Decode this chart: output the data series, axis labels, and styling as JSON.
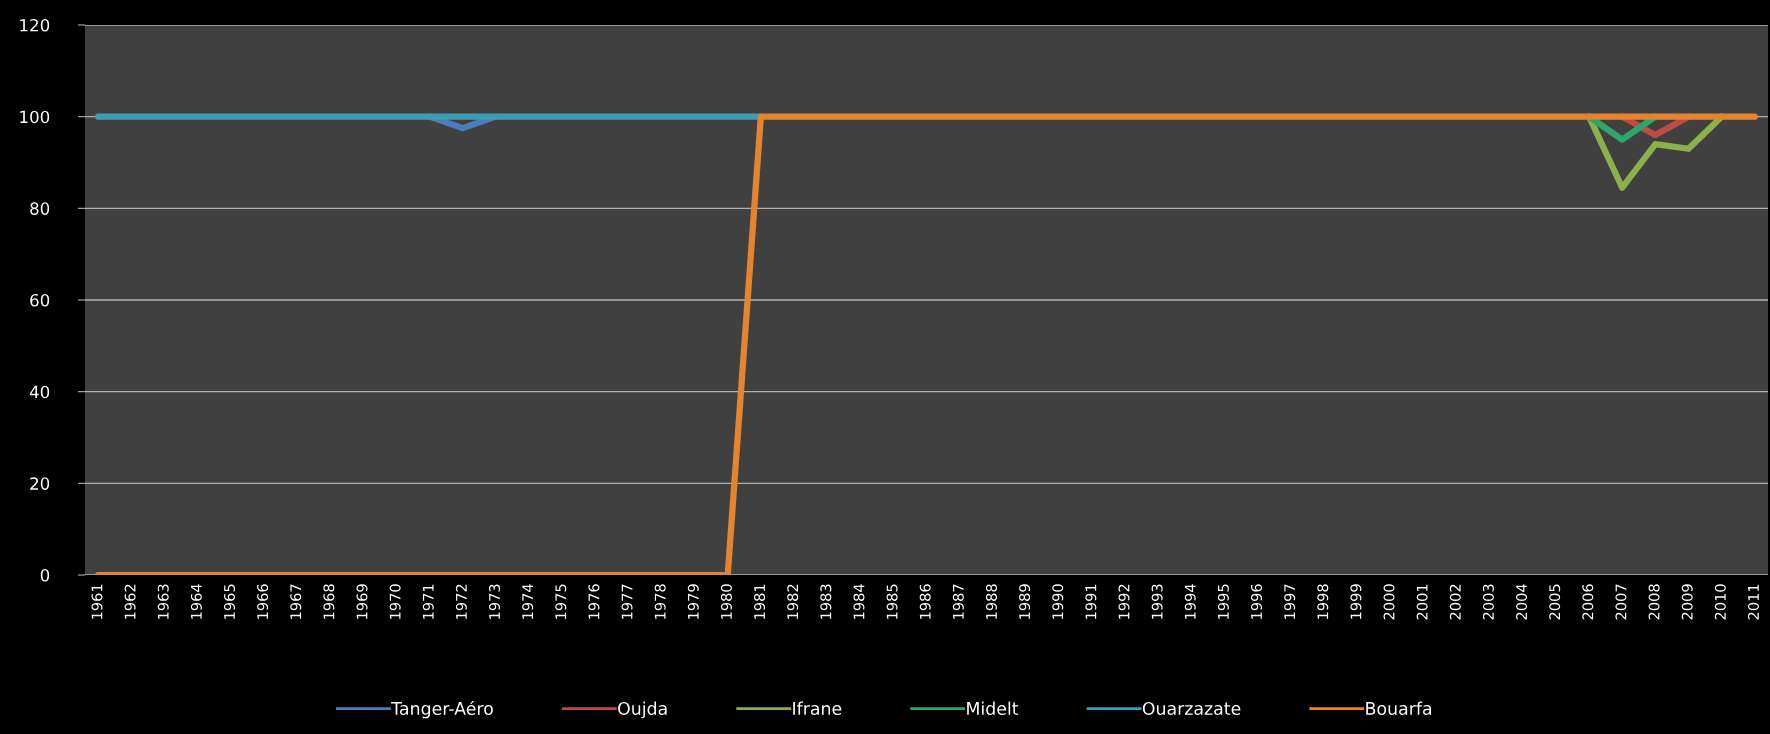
{
  "chart_data": {
    "type": "line",
    "categories": [
      "1961",
      "1962",
      "1963",
      "1964",
      "1965",
      "1966",
      "1967",
      "1968",
      "1969",
      "1970",
      "1971",
      "1972",
      "1973",
      "1974",
      "1975",
      "1976",
      "1977",
      "1978",
      "1979",
      "1980",
      "1981",
      "1982",
      "1983",
      "1984",
      "1985",
      "1986",
      "1987",
      "1988",
      "1989",
      "1990",
      "1991",
      "1992",
      "1993",
      "1994",
      "1995",
      "1996",
      "1997",
      "1998",
      "1999",
      "2000",
      "2001",
      "2002",
      "2003",
      "2004",
      "2005",
      "2006",
      "2007",
      "2008",
      "2009",
      "2010",
      "2011"
    ],
    "series": [
      {
        "name": "Tanger-Aéro",
        "color": "#4a7ebb",
        "values": [
          null,
          null,
          null,
          null,
          null,
          null,
          null,
          null,
          null,
          null,
          100,
          97.5,
          100,
          null,
          null,
          null,
          null,
          null,
          null,
          null,
          null,
          null,
          null,
          null,
          null,
          null,
          null,
          null,
          null,
          null,
          null,
          null,
          null,
          null,
          null,
          null,
          null,
          null,
          null,
          null,
          null,
          null,
          null,
          null,
          null,
          null,
          null,
          null,
          null,
          null,
          null
        ]
      },
      {
        "name": "Oujda",
        "color": "#be4b48",
        "values": [
          null,
          null,
          null,
          null,
          null,
          null,
          null,
          null,
          null,
          null,
          null,
          null,
          null,
          null,
          null,
          null,
          null,
          null,
          null,
          null,
          null,
          null,
          null,
          null,
          null,
          null,
          null,
          null,
          null,
          null,
          null,
          null,
          null,
          null,
          null,
          null,
          null,
          null,
          null,
          null,
          null,
          null,
          null,
          null,
          null,
          null,
          100,
          96,
          100,
          null,
          null
        ]
      },
      {
        "name": "Ifrane",
        "color": "#8cb04a",
        "values": [
          null,
          null,
          null,
          null,
          null,
          null,
          null,
          null,
          null,
          null,
          null,
          null,
          null,
          null,
          null,
          null,
          null,
          null,
          null,
          null,
          null,
          null,
          null,
          null,
          null,
          null,
          null,
          null,
          null,
          null,
          null,
          null,
          null,
          null,
          null,
          null,
          null,
          null,
          null,
          null,
          null,
          null,
          null,
          null,
          null,
          100,
          84.5,
          94,
          93,
          100,
          null
        ]
      },
      {
        "name": "Midelt",
        "color": "#2ea56b",
        "values": [
          null,
          null,
          null,
          null,
          null,
          null,
          null,
          null,
          null,
          null,
          null,
          null,
          null,
          null,
          null,
          null,
          null,
          null,
          null,
          null,
          null,
          null,
          null,
          null,
          null,
          null,
          null,
          null,
          null,
          null,
          null,
          null,
          null,
          null,
          null,
          null,
          null,
          null,
          null,
          null,
          null,
          null,
          null,
          null,
          null,
          100,
          95,
          100,
          null,
          null,
          null
        ]
      },
      {
        "name": "Ouarzazate",
        "color": "#3d9db5",
        "values": [
          100,
          100,
          100,
          100,
          100,
          100,
          100,
          100,
          100,
          100,
          100,
          100,
          100,
          100,
          100,
          100,
          100,
          100,
          100,
          100,
          100,
          null,
          null,
          null,
          null,
          null,
          null,
          null,
          null,
          null,
          null,
          null,
          null,
          null,
          null,
          null,
          null,
          null,
          null,
          null,
          null,
          null,
          null,
          null,
          null,
          null,
          null,
          null,
          null,
          null,
          null
        ]
      },
      {
        "name": "Bouarfa",
        "color": "#e5842f",
        "values": [
          0,
          0,
          0,
          0,
          0,
          0,
          0,
          0,
          0,
          0,
          0,
          0,
          0,
          0,
          0,
          0,
          0,
          0,
          0,
          0,
          100,
          100,
          100,
          100,
          100,
          100,
          100,
          100,
          100,
          100,
          100,
          100,
          100,
          100,
          100,
          100,
          100,
          100,
          100,
          100,
          100,
          100,
          100,
          100,
          100,
          100,
          100,
          100,
          100,
          100,
          100
        ]
      }
    ],
    "ylim": [
      0,
      120
    ],
    "yticks": [
      0,
      20,
      40,
      60,
      80,
      100,
      120
    ],
    "grid": "y",
    "legend": "bottom",
    "marker": "none",
    "line_style": "solid"
  }
}
